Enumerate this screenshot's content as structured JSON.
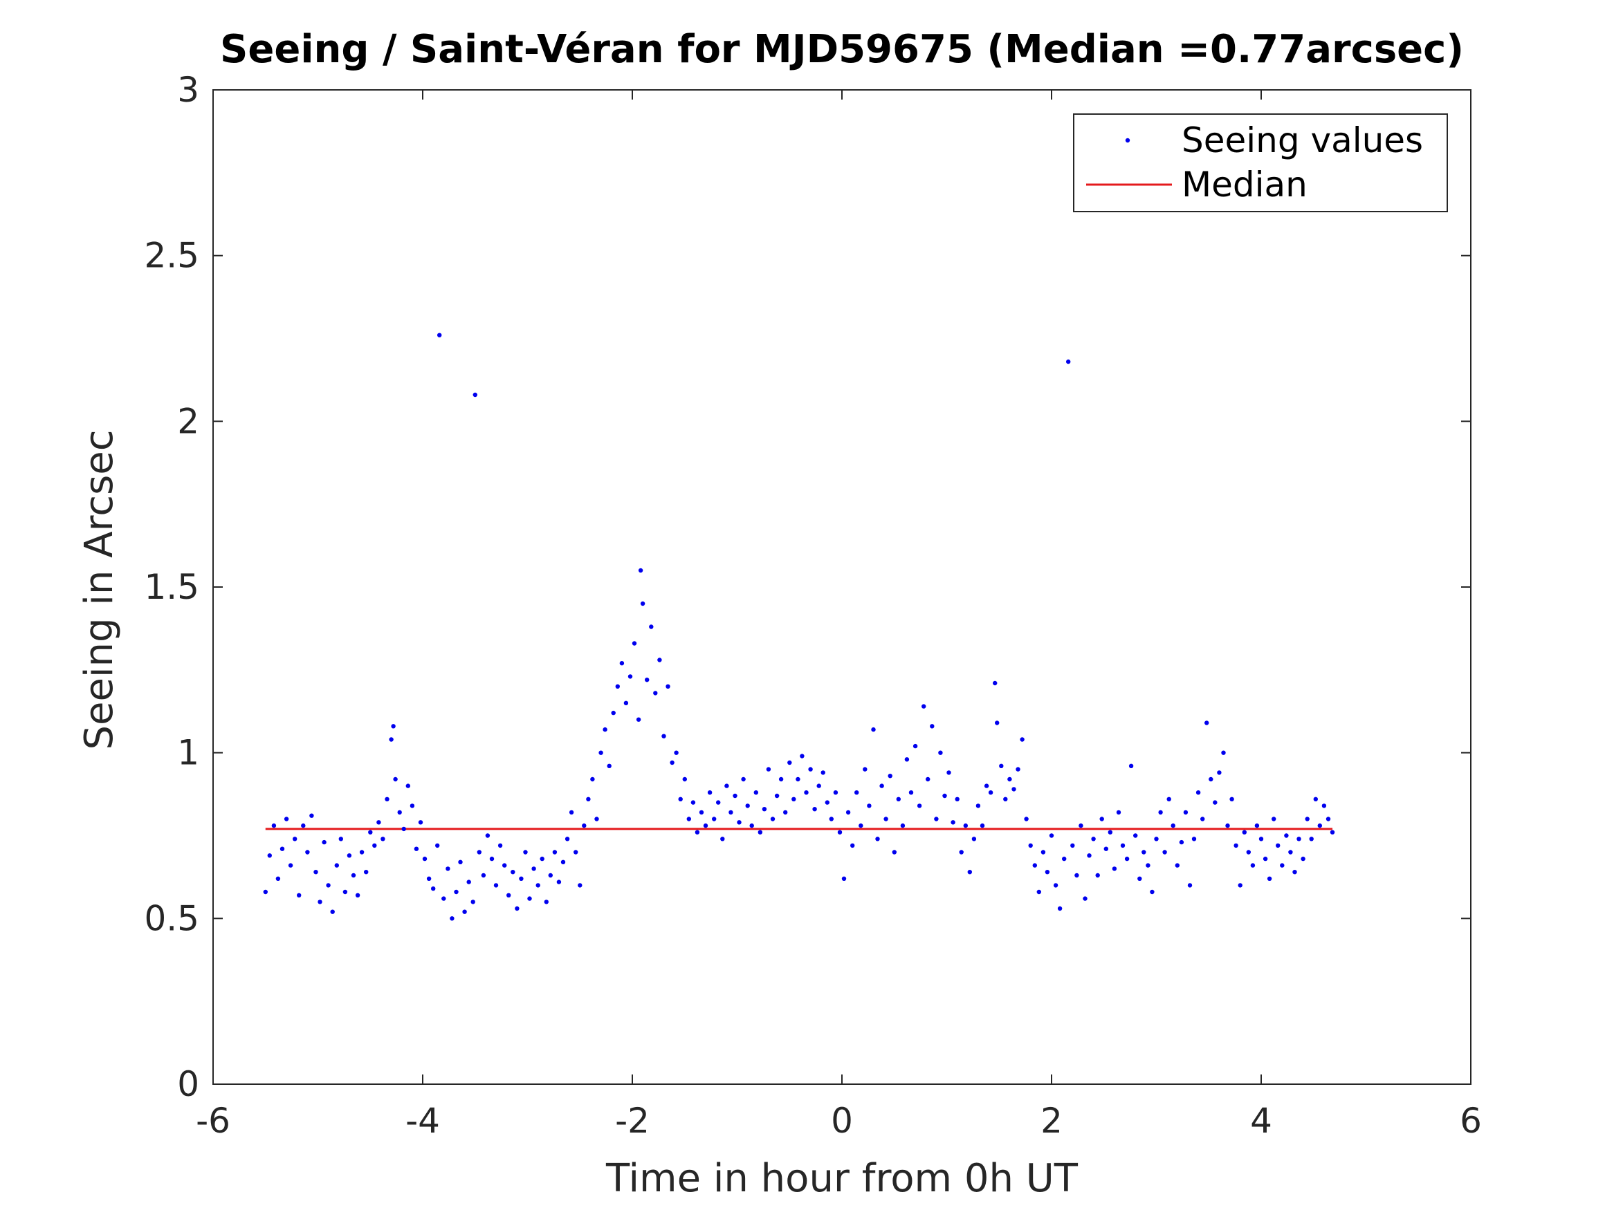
{
  "chart_data": {
    "type": "scatter",
    "title": "Seeing / Saint-Véran for MJD59675 (Median =0.77arcsec)",
    "xlabel": "Time in hour from 0h UT",
    "ylabel": "Seeing in Arcsec",
    "xlim": [
      -6,
      6
    ],
    "ylim": [
      0,
      3
    ],
    "xticks": [
      "-6",
      "-4",
      "-2",
      "0",
      "2",
      "4",
      "6"
    ],
    "yticks": [
      "0",
      "0.5",
      "1",
      "1.5",
      "2",
      "2.5",
      "3"
    ],
    "grid": false,
    "legend_position": "top-right",
    "colors": {
      "points": "#0000ee",
      "median": "#e41a1c",
      "axes": "#262626"
    },
    "series": [
      {
        "name": "Seeing values",
        "type": "scatter",
        "points": [
          [
            -5.5,
            0.58
          ],
          [
            -5.46,
            0.69
          ],
          [
            -5.42,
            0.78
          ],
          [
            -5.38,
            0.62
          ],
          [
            -5.34,
            0.71
          ],
          [
            -5.3,
            0.8
          ],
          [
            -5.26,
            0.66
          ],
          [
            -5.22,
            0.74
          ],
          [
            -5.18,
            0.57
          ],
          [
            -5.14,
            0.78
          ],
          [
            -5.1,
            0.7
          ],
          [
            -5.06,
            0.81
          ],
          [
            -5.02,
            0.64
          ],
          [
            -4.98,
            0.55
          ],
          [
            -4.94,
            0.73
          ],
          [
            -4.9,
            0.6
          ],
          [
            -4.86,
            0.52
          ],
          [
            -4.82,
            0.66
          ],
          [
            -4.78,
            0.74
          ],
          [
            -4.74,
            0.58
          ],
          [
            -4.7,
            0.69
          ],
          [
            -4.66,
            0.63
          ],
          [
            -4.62,
            0.57
          ],
          [
            -4.58,
            0.7
          ],
          [
            -4.54,
            0.64
          ],
          [
            -4.5,
            0.76
          ],
          [
            -4.46,
            0.72
          ],
          [
            -4.42,
            0.79
          ],
          [
            -4.38,
            0.74
          ],
          [
            -4.34,
            0.86
          ],
          [
            -4.3,
            1.04
          ],
          [
            -4.28,
            1.08
          ],
          [
            -4.26,
            0.92
          ],
          [
            -4.22,
            0.82
          ],
          [
            -4.18,
            0.77
          ],
          [
            -4.14,
            0.9
          ],
          [
            -4.1,
            0.84
          ],
          [
            -4.06,
            0.71
          ],
          [
            -4.02,
            0.79
          ],
          [
            -3.98,
            0.68
          ],
          [
            -3.94,
            0.62
          ],
          [
            -3.9,
            0.59
          ],
          [
            -3.86,
            0.72
          ],
          [
            -3.84,
            2.26
          ],
          [
            -3.8,
            0.56
          ],
          [
            -3.76,
            0.65
          ],
          [
            -3.72,
            0.5
          ],
          [
            -3.68,
            0.58
          ],
          [
            -3.64,
            0.67
          ],
          [
            -3.6,
            0.52
          ],
          [
            -3.56,
            0.61
          ],
          [
            -3.52,
            0.55
          ],
          [
            -3.5,
            2.08
          ],
          [
            -3.46,
            0.7
          ],
          [
            -3.42,
            0.63
          ],
          [
            -3.38,
            0.75
          ],
          [
            -3.34,
            0.68
          ],
          [
            -3.3,
            0.6
          ],
          [
            -3.26,
            0.72
          ],
          [
            -3.22,
            0.66
          ],
          [
            -3.18,
            0.57
          ],
          [
            -3.14,
            0.64
          ],
          [
            -3.1,
            0.53
          ],
          [
            -3.06,
            0.62
          ],
          [
            -3.02,
            0.7
          ],
          [
            -2.98,
            0.56
          ],
          [
            -2.94,
            0.65
          ],
          [
            -2.9,
            0.6
          ],
          [
            -2.86,
            0.68
          ],
          [
            -2.82,
            0.55
          ],
          [
            -2.78,
            0.63
          ],
          [
            -2.74,
            0.7
          ],
          [
            -2.7,
            0.61
          ],
          [
            -2.66,
            0.67
          ],
          [
            -2.62,
            0.74
          ],
          [
            -2.58,
            0.82
          ],
          [
            -2.54,
            0.7
          ],
          [
            -2.5,
            0.6
          ],
          [
            -2.46,
            0.78
          ],
          [
            -2.42,
            0.86
          ],
          [
            -2.38,
            0.92
          ],
          [
            -2.34,
            0.8
          ],
          [
            -2.3,
            1.0
          ],
          [
            -2.26,
            1.07
          ],
          [
            -2.22,
            0.96
          ],
          [
            -2.18,
            1.12
          ],
          [
            -2.14,
            1.2
          ],
          [
            -2.1,
            1.27
          ],
          [
            -2.06,
            1.15
          ],
          [
            -2.02,
            1.23
          ],
          [
            -1.98,
            1.33
          ],
          [
            -1.94,
            1.1
          ],
          [
            -1.92,
            1.55
          ],
          [
            -1.9,
            1.45
          ],
          [
            -1.86,
            1.22
          ],
          [
            -1.82,
            1.38
          ],
          [
            -1.78,
            1.18
          ],
          [
            -1.74,
            1.28
          ],
          [
            -1.7,
            1.05
          ],
          [
            -1.66,
            1.2
          ],
          [
            -1.62,
            0.97
          ],
          [
            -1.58,
            1.0
          ],
          [
            -1.54,
            0.86
          ],
          [
            -1.5,
            0.92
          ],
          [
            -1.46,
            0.8
          ],
          [
            -1.42,
            0.85
          ],
          [
            -1.38,
            0.76
          ],
          [
            -1.34,
            0.82
          ],
          [
            -1.3,
            0.78
          ],
          [
            -1.26,
            0.88
          ],
          [
            -1.22,
            0.8
          ],
          [
            -1.18,
            0.85
          ],
          [
            -1.14,
            0.74
          ],
          [
            -1.1,
            0.9
          ],
          [
            -1.06,
            0.82
          ],
          [
            -1.02,
            0.87
          ],
          [
            -0.98,
            0.79
          ],
          [
            -0.94,
            0.92
          ],
          [
            -0.9,
            0.84
          ],
          [
            -0.86,
            0.78
          ],
          [
            -0.82,
            0.88
          ],
          [
            -0.78,
            0.76
          ],
          [
            -0.74,
            0.83
          ],
          [
            -0.7,
            0.95
          ],
          [
            -0.66,
            0.8
          ],
          [
            -0.62,
            0.87
          ],
          [
            -0.58,
            0.92
          ],
          [
            -0.54,
            0.82
          ],
          [
            -0.5,
            0.97
          ],
          [
            -0.46,
            0.86
          ],
          [
            -0.42,
            0.92
          ],
          [
            -0.38,
            0.99
          ],
          [
            -0.34,
            0.88
          ],
          [
            -0.3,
            0.95
          ],
          [
            -0.26,
            0.83
          ],
          [
            -0.22,
            0.9
          ],
          [
            -0.18,
            0.94
          ],
          [
            -0.14,
            0.85
          ],
          [
            -0.1,
            0.8
          ],
          [
            -0.06,
            0.88
          ],
          [
            -0.02,
            0.76
          ],
          [
            0.02,
            0.62
          ],
          [
            0.06,
            0.82
          ],
          [
            0.1,
            0.72
          ],
          [
            0.14,
            0.88
          ],
          [
            0.18,
            0.78
          ],
          [
            0.22,
            0.95
          ],
          [
            0.26,
            0.84
          ],
          [
            0.3,
            1.07
          ],
          [
            0.34,
            0.74
          ],
          [
            0.38,
            0.9
          ],
          [
            0.42,
            0.8
          ],
          [
            0.46,
            0.93
          ],
          [
            0.5,
            0.7
          ],
          [
            0.54,
            0.86
          ],
          [
            0.58,
            0.78
          ],
          [
            0.62,
            0.98
          ],
          [
            0.66,
            0.88
          ],
          [
            0.7,
            1.02
          ],
          [
            0.74,
            0.84
          ],
          [
            0.78,
            1.14
          ],
          [
            0.82,
            0.92
          ],
          [
            0.86,
            1.08
          ],
          [
            0.9,
            0.8
          ],
          [
            0.94,
            1.0
          ],
          [
            0.98,
            0.87
          ],
          [
            1.02,
            0.94
          ],
          [
            1.06,
            0.79
          ],
          [
            1.1,
            0.86
          ],
          [
            1.14,
            0.7
          ],
          [
            1.18,
            0.78
          ],
          [
            1.22,
            0.64
          ],
          [
            1.26,
            0.74
          ],
          [
            1.3,
            0.84
          ],
          [
            1.34,
            0.78
          ],
          [
            1.38,
            0.9
          ],
          [
            1.42,
            0.88
          ],
          [
            1.46,
            1.21
          ],
          [
            1.48,
            1.09
          ],
          [
            1.52,
            0.96
          ],
          [
            1.56,
            0.86
          ],
          [
            1.6,
            0.92
          ],
          [
            1.64,
            0.89
          ],
          [
            1.68,
            0.95
          ],
          [
            1.72,
            1.04
          ],
          [
            1.76,
            0.8
          ],
          [
            1.8,
            0.72
          ],
          [
            1.84,
            0.66
          ],
          [
            1.88,
            0.58
          ],
          [
            1.92,
            0.7
          ],
          [
            1.96,
            0.64
          ],
          [
            2.0,
            0.75
          ],
          [
            2.04,
            0.6
          ],
          [
            2.08,
            0.53
          ],
          [
            2.12,
            0.68
          ],
          [
            2.16,
            2.18
          ],
          [
            2.2,
            0.72
          ],
          [
            2.24,
            0.63
          ],
          [
            2.28,
            0.78
          ],
          [
            2.32,
            0.56
          ],
          [
            2.36,
            0.69
          ],
          [
            2.4,
            0.74
          ],
          [
            2.44,
            0.63
          ],
          [
            2.48,
            0.8
          ],
          [
            2.52,
            0.71
          ],
          [
            2.56,
            0.76
          ],
          [
            2.6,
            0.65
          ],
          [
            2.64,
            0.82
          ],
          [
            2.68,
            0.72
          ],
          [
            2.72,
            0.68
          ],
          [
            2.76,
            0.96
          ],
          [
            2.8,
            0.75
          ],
          [
            2.84,
            0.62
          ],
          [
            2.88,
            0.7
          ],
          [
            2.92,
            0.66
          ],
          [
            2.96,
            0.58
          ],
          [
            3.0,
            0.74
          ],
          [
            3.04,
            0.82
          ],
          [
            3.08,
            0.7
          ],
          [
            3.12,
            0.86
          ],
          [
            3.16,
            0.78
          ],
          [
            3.2,
            0.66
          ],
          [
            3.24,
            0.73
          ],
          [
            3.28,
            0.82
          ],
          [
            3.32,
            0.6
          ],
          [
            3.36,
            0.74
          ],
          [
            3.4,
            0.88
          ],
          [
            3.44,
            0.8
          ],
          [
            3.48,
            1.09
          ],
          [
            3.52,
            0.92
          ],
          [
            3.56,
            0.85
          ],
          [
            3.6,
            0.94
          ],
          [
            3.64,
            1.0
          ],
          [
            3.68,
            0.78
          ],
          [
            3.72,
            0.86
          ],
          [
            3.76,
            0.72
          ],
          [
            3.8,
            0.6
          ],
          [
            3.84,
            0.76
          ],
          [
            3.88,
            0.7
          ],
          [
            3.92,
            0.66
          ],
          [
            3.96,
            0.78
          ],
          [
            4.0,
            0.74
          ],
          [
            4.04,
            0.68
          ],
          [
            4.08,
            0.62
          ],
          [
            4.12,
            0.8
          ],
          [
            4.16,
            0.72
          ],
          [
            4.2,
            0.66
          ],
          [
            4.24,
            0.75
          ],
          [
            4.28,
            0.7
          ],
          [
            4.32,
            0.64
          ],
          [
            4.36,
            0.74
          ],
          [
            4.4,
            0.68
          ],
          [
            4.44,
            0.8
          ],
          [
            4.48,
            0.74
          ],
          [
            4.52,
            0.86
          ],
          [
            4.56,
            0.78
          ],
          [
            4.6,
            0.84
          ],
          [
            4.64,
            0.8
          ],
          [
            4.68,
            0.76
          ]
        ]
      },
      {
        "name": "Median",
        "type": "line",
        "points": [
          [
            -5.5,
            0.77
          ],
          [
            4.68,
            0.77
          ]
        ]
      }
    ]
  }
}
